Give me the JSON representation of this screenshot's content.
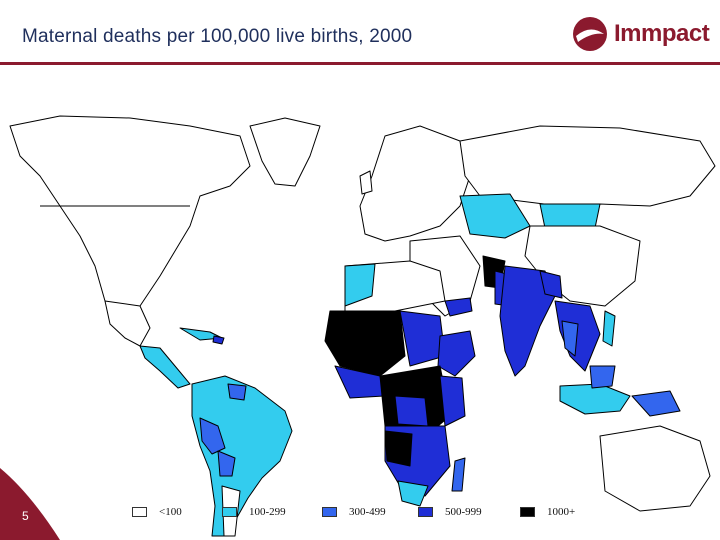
{
  "slide": {
    "title": "Maternal deaths per 100,000 live births, 2000",
    "page_number": "5",
    "logo_text": "Immpact"
  },
  "legend": [
    {
      "label": "<100",
      "color": "#ffffff"
    },
    {
      "label": "100-299",
      "color": "#33ccee"
    },
    {
      "label": "300-499",
      "color": "#3366ee"
    },
    {
      "label": "500-999",
      "color": "#1f2ed6"
    },
    {
      "label": "1000+",
      "color": "#000000"
    }
  ],
  "colors": {
    "brand": "#8b1a2e",
    "title_text": "#1f2f5c",
    "ocean": "#ffffff",
    "border": "#000000"
  },
  "icons": {
    "logo": "immpact-logo-icon"
  }
}
